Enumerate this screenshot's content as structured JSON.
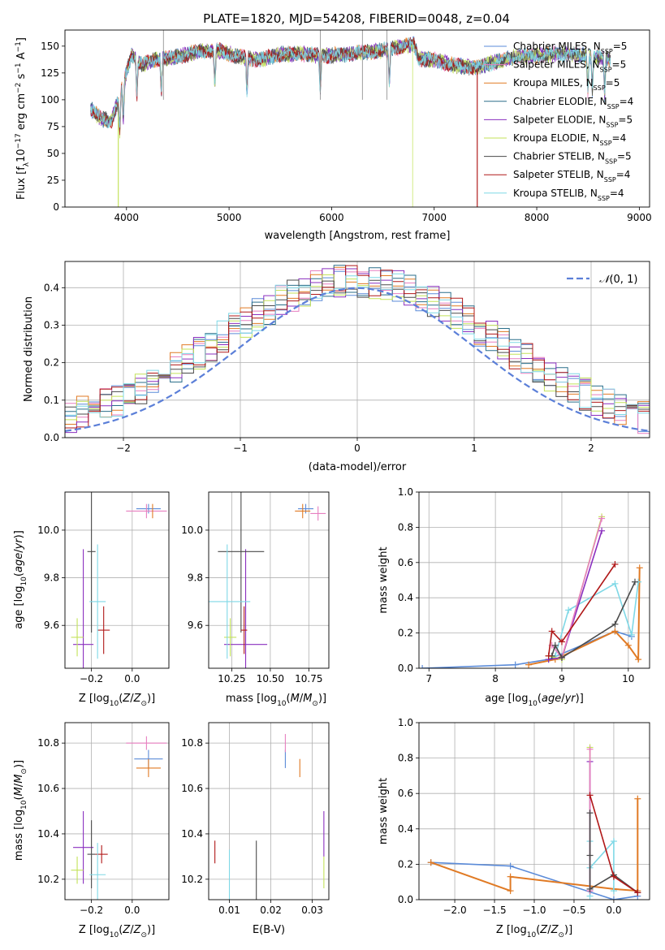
{
  "figure": {
    "title": "PLATE=1820, MJD=54208, FIBERID=0048, z=0.04"
  },
  "series": [
    {
      "name": "Chabrier MILES, N_SSP=5",
      "base": "Chabrier MILES, N",
      "sub": "SSP",
      "suffix": "=5",
      "color": "#5b8bd8"
    },
    {
      "name": "Salpeter MILES, N_SSP=5",
      "base": "Salpeter MILES, N",
      "sub": "SSP",
      "suffix": "=5",
      "color": "#e77fc0"
    },
    {
      "name": "Kroupa MILES, N_SSP=5",
      "base": "Kroupa MILES, N",
      "sub": "SSP",
      "suffix": "=5",
      "color": "#e07a24"
    },
    {
      "name": "Chabrier ELODIE, N_SSP=4",
      "base": "Chabrier ELODIE, N",
      "sub": "SSP",
      "suffix": "=4",
      "color": "#2a6e8a"
    },
    {
      "name": "Salpeter ELODIE, N_SSP=5",
      "base": "Salpeter ELODIE, N",
      "sub": "SSP",
      "suffix": "=5",
      "color": "#8a2fbf"
    },
    {
      "name": "Kroupa ELODIE, N_SSP=4",
      "base": "Kroupa ELODIE, N",
      "sub": "SSP",
      "suffix": "=4",
      "color": "#c3e25a"
    },
    {
      "name": "Chabrier STELIB, N_SSP=5",
      "base": "Chabrier STELIB, N",
      "sub": "SSP",
      "suffix": "=5",
      "color": "#4a4a4a"
    },
    {
      "name": "Salpeter STELIB, N_SSP=4",
      "base": "Salpeter STELIB, N",
      "sub": "SSP",
      "suffix": "=4",
      "color": "#b01818"
    },
    {
      "name": "Kroupa STELIB, N_SSP=4",
      "base": "Kroupa STELIB, N",
      "sub": "SSP",
      "suffix": "=4",
      "color": "#7fd8e6"
    }
  ],
  "chart_data": [
    {
      "id": "spectrum",
      "type": "line",
      "xlabel": "wavelength [Angstrom, rest frame]",
      "ylabel": "Flux [f_λ 10^-17 erg cm^-2 s^-1 A^-1]",
      "xlim": [
        3400,
        9100
      ],
      "ylim": [
        0,
        165
      ],
      "xticks": [
        4000,
        5000,
        6000,
        7000,
        8000,
        9000
      ],
      "yticks": [
        0,
        25,
        50,
        75,
        100,
        125,
        150
      ],
      "grid": false,
      "legend": "right",
      "continuum": [
        [
          3650,
          92
        ],
        [
          3750,
          82
        ],
        [
          3850,
          80
        ],
        [
          3950,
          108
        ],
        [
          4050,
          142
        ],
        [
          4150,
          133
        ],
        [
          4300,
          138
        ],
        [
          4500,
          140
        ],
        [
          4700,
          145
        ],
        [
          4900,
          146
        ],
        [
          5100,
          140
        ],
        [
          5300,
          137
        ],
        [
          5500,
          142
        ],
        [
          5700,
          143
        ],
        [
          5900,
          141
        ],
        [
          6100,
          142
        ],
        [
          6300,
          144
        ],
        [
          6500,
          146
        ],
        [
          6700,
          150
        ],
        [
          6800,
          152
        ],
        [
          6850,
          138
        ],
        [
          7000,
          137
        ],
        [
          7200,
          132
        ],
        [
          7400,
          130
        ],
        [
          7600,
          135
        ],
        [
          7800,
          140
        ],
        [
          8000,
          141
        ],
        [
          8200,
          143
        ],
        [
          8400,
          142
        ],
        [
          8600,
          140
        ],
        [
          8700,
          138
        ]
      ],
      "absorption_lines": [
        3934,
        3969,
        4101,
        4340,
        4861,
        5175,
        5890,
        6563,
        8498,
        8542,
        8662
      ],
      "dropouts": [
        {
          "series": "Kroupa ELODIE, N_SSP=4",
          "x": 3920
        },
        {
          "series": "Kroupa ELODIE, N_SSP=4",
          "x": 6790
        },
        {
          "series": "Salpeter STELIB, N_SSP=4",
          "x": 7420
        }
      ]
    },
    {
      "id": "residual-histogram",
      "type": "histogram",
      "xlabel": "(data-model)/error",
      "ylabel": "Normed distribution",
      "xlim": [
        -2.5,
        2.5
      ],
      "ylim": [
        0,
        0.47
      ],
      "xticks": [
        -2,
        -1,
        0,
        1,
        2
      ],
      "yticks": [
        0.0,
        0.1,
        0.2,
        0.3,
        0.4
      ],
      "grid": true,
      "legend": "top-right",
      "reference_curve": {
        "name": "N(0,1)",
        "mean": 0,
        "sigma": 1,
        "color": "#5b7fd8"
      }
    },
    {
      "id": "age-vs-Z",
      "type": "errorbar",
      "xlabel": "Z [log10(Z/Z_sun)]",
      "ylabel": "age [log10(age/yr)]",
      "xlim": [
        -0.33,
        0.18
      ],
      "ylim": [
        9.42,
        10.16
      ],
      "xticks": [
        -0.2,
        0.0
      ],
      "xticklabels": [
        "−0.2",
        "0.0"
      ],
      "yticks": [
        9.6,
        9.8,
        10.0
      ],
      "grid": true,
      "points": [
        {
          "c": "#5b8bd8",
          "x": 0.08,
          "y": 10.09,
          "xe": 0.06,
          "ye": 0.02
        },
        {
          "c": "#e77fc0",
          "x": 0.07,
          "y": 10.08,
          "xe": 0.1,
          "ye": 0.03
        },
        {
          "c": "#e07a24",
          "x": 0.1,
          "y": 10.08,
          "xe": 0.0,
          "ye": 0.03
        },
        {
          "c": "#8a2fbf",
          "x": -0.24,
          "y": 9.52,
          "xe": 0.05,
          "ye": 0.4
        },
        {
          "c": "#c3e25a",
          "x": -0.27,
          "y": 9.55,
          "xe": 0.03,
          "ye": 0.08
        },
        {
          "c": "#4a4a4a",
          "x": -0.2,
          "y": 9.91,
          "xe": 0.02,
          "ye": 0.34
        },
        {
          "c": "#b01818",
          "x": -0.14,
          "y": 9.58,
          "xe": 0.03,
          "ye": 0.1
        },
        {
          "c": "#7fd8e6",
          "x": -0.17,
          "y": 9.7,
          "xe": 0.04,
          "ye": 0.24
        }
      ]
    },
    {
      "id": "age-vs-mass",
      "type": "errorbar",
      "xlabel": "mass [log10(M/M_sun)]",
      "ylabel": "",
      "xlim": [
        10.1,
        10.88
      ],
      "ylim": [
        9.42,
        10.16
      ],
      "xticks": [
        10.25,
        10.5,
        10.75
      ],
      "xticklabels": [
        "10.25",
        "10.50",
        "10.75"
      ],
      "yticks": [
        9.6,
        9.8,
        10.0
      ],
      "grid": true,
      "points": [
        {
          "c": "#5b8bd8",
          "x": 10.73,
          "y": 10.09,
          "xe": 0.05,
          "ye": 0.02
        },
        {
          "c": "#e77fc0",
          "x": 10.81,
          "y": 10.07,
          "xe": 0.05,
          "ye": 0.03
        },
        {
          "c": "#e07a24",
          "x": 10.71,
          "y": 10.08,
          "xe": 0.05,
          "ye": 0.03
        },
        {
          "c": "#8a2fbf",
          "x": 10.34,
          "y": 9.52,
          "xe": 0.14,
          "ye": 0.4
        },
        {
          "c": "#c3e25a",
          "x": 10.24,
          "y": 9.55,
          "xe": 0.04,
          "ye": 0.08
        },
        {
          "c": "#4a4a4a",
          "x": 10.31,
          "y": 9.91,
          "xe": 0.15,
          "ye": 0.34
        },
        {
          "c": "#b01818",
          "x": 10.33,
          "y": 9.58,
          "xe": 0.02,
          "ye": 0.1
        },
        {
          "c": "#7fd8e6",
          "x": 10.22,
          "y": 9.7,
          "xe": 0.15,
          "ye": 0.24
        }
      ]
    },
    {
      "id": "mass-weight-vs-age",
      "type": "line",
      "xlabel": "age [log10(age/yr)]",
      "ylabel": "mass weight",
      "xlim": [
        6.85,
        10.32
      ],
      "ylim": [
        0,
        1
      ],
      "xticks": [
        7,
        8,
        9,
        10
      ],
      "yticks": [
        0.0,
        0.2,
        0.4,
        0.6,
        0.8,
        1.0
      ],
      "grid": true,
      "series": [
        {
          "c": "#5b8bd8",
          "w": 1.6,
          "pts": [
            [
              6.9,
              0.0
            ],
            [
              8.3,
              0.02
            ],
            [
              8.8,
              0.05
            ],
            [
              9.8,
              0.21
            ],
            [
              10.05,
              0.18
            ]
          ]
        },
        {
          "c": "#e07a24",
          "w": 2.0,
          "pts": [
            [
              8.5,
              0.02
            ],
            [
              8.9,
              0.05
            ],
            [
              9.8,
              0.21
            ],
            [
              10.0,
              0.13
            ],
            [
              10.15,
              0.05
            ],
            [
              10.17,
              0.57
            ]
          ]
        },
        {
          "c": "#7fd8e6",
          "w": 1.6,
          "pts": [
            [
              8.9,
              0.07
            ],
            [
              9.1,
              0.33
            ],
            [
              9.8,
              0.48
            ],
            [
              10.05,
              0.19
            ],
            [
              10.15,
              0.49
            ]
          ]
        },
        {
          "c": "#c3e25a",
          "w": 1.6,
          "pts": [
            [
              8.8,
              0.07
            ],
            [
              9.0,
              0.05
            ],
            [
              9.6,
              0.86
            ]
          ]
        },
        {
          "c": "#8a2fbf",
          "w": 1.6,
          "pts": [
            [
              8.8,
              0.05
            ],
            [
              9.0,
              0.06
            ],
            [
              9.6,
              0.78
            ]
          ]
        },
        {
          "c": "#e77fc0",
          "w": 1.6,
          "pts": [
            [
              8.85,
              0.13
            ],
            [
              9.0,
              0.06
            ],
            [
              9.6,
              0.85
            ]
          ]
        },
        {
          "c": "#4a4a4a",
          "w": 1.6,
          "pts": [
            [
              8.85,
              0.07
            ],
            [
              8.9,
              0.13
            ],
            [
              9.0,
              0.06
            ],
            [
              9.8,
              0.25
            ],
            [
              10.1,
              0.49
            ]
          ]
        },
        {
          "c": "#b01818",
          "w": 1.6,
          "pts": [
            [
              8.8,
              0.07
            ],
            [
              8.85,
              0.21
            ],
            [
              9.0,
              0.15
            ],
            [
              9.8,
              0.59
            ]
          ]
        }
      ]
    },
    {
      "id": "mass-vs-Z",
      "type": "errorbar",
      "xlabel": "Z [log10(Z/Z_sun)]",
      "ylabel": "mass [log10(M/M_sun)]",
      "xlim": [
        -0.33,
        0.18
      ],
      "ylim": [
        10.11,
        10.89
      ],
      "xticks": [
        -0.2,
        0.0
      ],
      "xticklabels": [
        "−0.2",
        "0.0"
      ],
      "yticks": [
        10.2,
        10.4,
        10.6,
        10.8
      ],
      "grid": true,
      "points": [
        {
          "c": "#5b8bd8",
          "x": 0.08,
          "y": 10.73,
          "xe": 0.07,
          "ye": 0.04
        },
        {
          "c": "#e77fc0",
          "x": 0.07,
          "y": 10.8,
          "xe": 0.1,
          "ye": 0.03
        },
        {
          "c": "#e07a24",
          "x": 0.08,
          "y": 10.69,
          "xe": 0.06,
          "ye": 0.04
        },
        {
          "c": "#8a2fbf",
          "x": -0.24,
          "y": 10.34,
          "xe": 0.05,
          "ye": 0.16
        },
        {
          "c": "#c3e25a",
          "x": -0.27,
          "y": 10.24,
          "xe": 0.03,
          "ye": 0.06
        },
        {
          "c": "#4a4a4a",
          "x": -0.2,
          "y": 10.31,
          "xe": 0.02,
          "ye": 0.15
        },
        {
          "c": "#b01818",
          "x": -0.15,
          "y": 10.31,
          "xe": 0.03,
          "ye": 0.04
        },
        {
          "c": "#7fd8e6",
          "x": -0.17,
          "y": 10.22,
          "xe": 0.04,
          "ye": 0.14
        }
      ]
    },
    {
      "id": "mass-vs-ebv",
      "type": "errorbar",
      "xlabel": "E(B-V)",
      "ylabel": "",
      "xlim": [
        0.005,
        0.034
      ],
      "ylim": [
        10.11,
        10.89
      ],
      "xticks": [
        0.01,
        0.02,
        0.03
      ],
      "xticklabels": [
        "0.01",
        "0.02",
        "0.03"
      ],
      "yticks": [
        10.2,
        10.4,
        10.6,
        10.8
      ],
      "grid": true,
      "points": [
        {
          "c": "#5b8bd8",
          "x": 0.0235,
          "y": 10.73,
          "xe": 0.0,
          "ye": 0.04
        },
        {
          "c": "#e77fc0",
          "x": 0.0235,
          "y": 10.8,
          "xe": 0.0,
          "ye": 0.04
        },
        {
          "c": "#e07a24",
          "x": 0.027,
          "y": 10.69,
          "xe": 0.0,
          "ye": 0.04
        },
        {
          "c": "#8a2fbf",
          "x": 0.0328,
          "y": 10.4,
          "xe": 0.0,
          "ye": 0.1
        },
        {
          "c": "#c3e25a",
          "x": 0.0328,
          "y": 10.23,
          "xe": 0.0,
          "ye": 0.07
        },
        {
          "c": "#4a4a4a",
          "x": 0.0165,
          "y": 10.23,
          "xe": 0.0,
          "ye": 0.14
        },
        {
          "c": "#b01818",
          "x": 0.0065,
          "y": 10.32,
          "xe": 0.0,
          "ye": 0.05
        },
        {
          "c": "#7fd8e6",
          "x": 0.01,
          "y": 10.22,
          "xe": 0.0,
          "ye": 0.11
        }
      ]
    },
    {
      "id": "mass-weight-vs-Z",
      "type": "line",
      "xlabel": "Z [log10(Z/Z_sun)]",
      "ylabel": "mass weight",
      "xlim": [
        -2.45,
        0.45
      ],
      "ylim": [
        0,
        1
      ],
      "xticks": [
        -2.0,
        -1.5,
        -1.0,
        -0.5,
        0.0
      ],
      "xticklabels": [
        "−2.0",
        "−1.5",
        "−1.0",
        "−0.5",
        "0.0"
      ],
      "yticks": [
        0.0,
        0.2,
        0.4,
        0.6,
        0.8,
        1.0
      ],
      "grid": true,
      "series": [
        {
          "c": "#5b8bd8",
          "w": 1.6,
          "pts": [
            [
              -2.3,
              0.21
            ],
            [
              -1.3,
              0.19
            ],
            [
              0.0,
              0.0
            ],
            [
              0.3,
              0.02
            ]
          ]
        },
        {
          "c": "#e07a24",
          "w": 2.0,
          "pts": [
            [
              -2.3,
              0.21
            ],
            [
              -1.3,
              0.05
            ],
            [
              -1.3,
              0.13
            ],
            [
              0.0,
              0.06
            ],
            [
              0.3,
              0.05
            ],
            [
              0.3,
              0.57
            ]
          ]
        },
        {
          "c": "#7fd8e6",
          "w": 1.6,
          "pts": [
            [
              -0.3,
              0.02
            ],
            [
              -0.3,
              0.33
            ],
            [
              -0.3,
              0.18
            ],
            [
              0.0,
              0.33
            ],
            [
              0.0,
              0.05
            ]
          ]
        },
        {
          "c": "#c3e25a",
          "w": 1.6,
          "pts": [
            [
              -0.3,
              0.86
            ],
            [
              -0.3,
              0.05
            ]
          ]
        },
        {
          "c": "#8a2fbf",
          "w": 1.6,
          "pts": [
            [
              -0.3,
              0.78
            ],
            [
              -0.3,
              0.05
            ]
          ]
        },
        {
          "c": "#e77fc0",
          "w": 1.6,
          "pts": [
            [
              -0.3,
              0.85
            ],
            [
              -0.3,
              0.05
            ]
          ]
        },
        {
          "c": "#4a4a4a",
          "w": 1.6,
          "pts": [
            [
              -0.3,
              0.49
            ],
            [
              -0.3,
              0.25
            ],
            [
              -0.3,
              0.06
            ],
            [
              0.0,
              0.14
            ],
            [
              0.3,
              0.04
            ]
          ]
        },
        {
          "c": "#b01818",
          "w": 1.6,
          "pts": [
            [
              -0.3,
              0.59
            ],
            [
              0.0,
              0.13
            ],
            [
              0.3,
              0.04
            ]
          ]
        }
      ]
    }
  ]
}
